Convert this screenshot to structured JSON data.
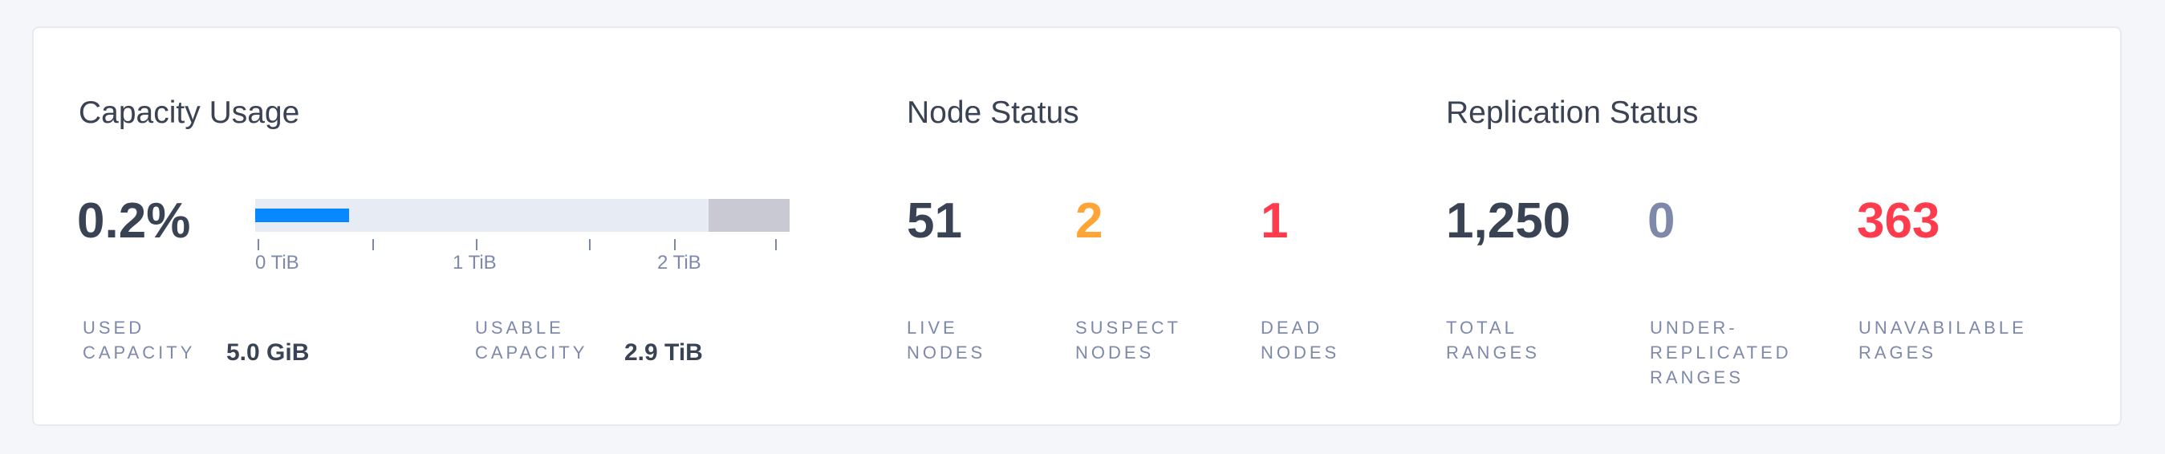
{
  "capacity": {
    "title": "Capacity Usage",
    "percent": "0.2%",
    "bar": {
      "used_fraction": 0.002,
      "colors": {
        "used": "#0788ff",
        "track": "#e7ebf3",
        "reserved": "#c8c9d2"
      }
    },
    "axis_labels": [
      "0 TiB",
      "1 TiB",
      "2 TiB"
    ],
    "used_label": "USED\nCAPACITY",
    "used_value": "5.0 GiB",
    "usable_label": "USABLE\nCAPACITY",
    "usable_value": "2.9 TiB"
  },
  "nodes": {
    "title": "Node Status",
    "stats": [
      {
        "value": "51",
        "label": "LIVE\nNODES",
        "color": "#3a4354"
      },
      {
        "value": "2",
        "label": "SUSPECT\nNODES",
        "color": "#ffa538"
      },
      {
        "value": "1",
        "label": "DEAD\nNODES",
        "color": "#ff3b4e"
      }
    ]
  },
  "replication": {
    "title": "Replication Status",
    "stats": [
      {
        "value": "1,250",
        "label": "TOTAL\nRANGES",
        "color": "#3a4354"
      },
      {
        "value": "0",
        "label": "UNDER-\nREPLICATED\nRANGES",
        "color": "#7e89a9"
      },
      {
        "value": "363",
        "label": "UNAVABILABLE\nRAGES",
        "color": "#ff3b4e"
      }
    ]
  }
}
